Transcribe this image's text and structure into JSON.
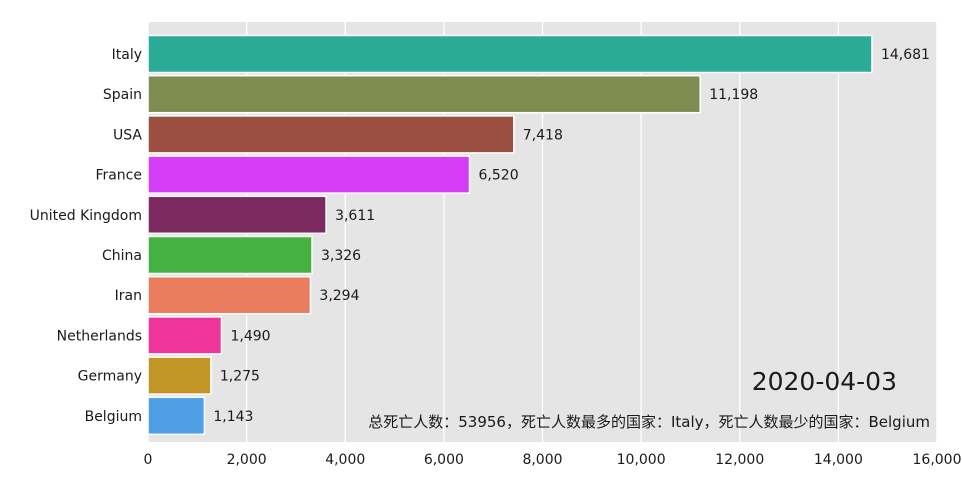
{
  "chart_data": {
    "type": "bar",
    "orientation": "horizontal",
    "categories": [
      "Italy",
      "Spain",
      "USA",
      "France",
      "United Kingdom",
      "China",
      "Iran",
      "Netherlands",
      "Germany",
      "Belgium"
    ],
    "values": [
      14681,
      11198,
      7418,
      6520,
      3611,
      3326,
      3294,
      1490,
      1275,
      1143
    ],
    "value_labels": [
      "14,681",
      "11,198",
      "7,418",
      "6,520",
      "3,611",
      "3,326",
      "3,294",
      "1,490",
      "1,275",
      "1,143"
    ],
    "colors": [
      "#2aab97",
      "#7f8c51",
      "#9b4f40",
      "#d63ef5",
      "#7d2a61",
      "#44b140",
      "#e97d5d",
      "#f0359a",
      "#c29527",
      "#4f9fe6"
    ],
    "xlim": [
      0,
      16000
    ],
    "xticks": [
      0,
      2000,
      4000,
      6000,
      8000,
      10000,
      12000,
      14000,
      16000
    ],
    "xtick_labels": [
      "0",
      "2,000",
      "4,000",
      "6,000",
      "8,000",
      "10,000",
      "12,000",
      "14,000",
      "16,000"
    ],
    "grid": true,
    "title": "",
    "xlabel": "",
    "ylabel": ""
  },
  "annotations": {
    "date": "2020-04-03",
    "summary": "总死亡人数：53956，死亡人数最多的国家：Italy，死亡人数最少的国家：Belgium"
  },
  "colors": {
    "plot_background": "#e5e5e5",
    "grid": "#ffffff"
  }
}
